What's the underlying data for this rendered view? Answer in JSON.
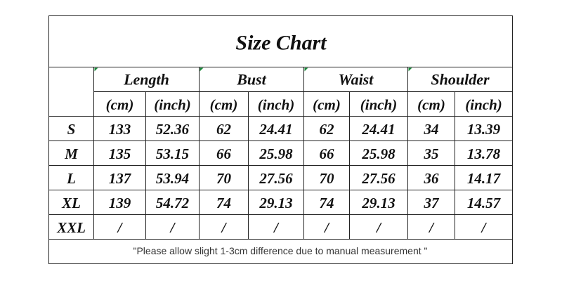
{
  "title": "Size Chart",
  "columns": [
    {
      "name": "Length"
    },
    {
      "name": "Bust"
    },
    {
      "name": "Waist"
    },
    {
      "name": "Shoulder"
    }
  ],
  "units": [
    "(cm)",
    "(inch)",
    "(cm)",
    "(inch)",
    "(cm)",
    "(inch)",
    "(cm)",
    "(inch)"
  ],
  "rows": [
    {
      "label": "S",
      "values": [
        "133",
        "52.36",
        "62",
        "24.41",
        "62",
        "24.41",
        "34",
        "13.39"
      ]
    },
    {
      "label": "M",
      "values": [
        "135",
        "53.15",
        "66",
        "25.98",
        "66",
        "25.98",
        "35",
        "13.78"
      ]
    },
    {
      "label": "L",
      "values": [
        "137",
        "53.94",
        "70",
        "27.56",
        "70",
        "27.56",
        "36",
        "14.17"
      ]
    },
    {
      "label": "XL",
      "values": [
        "139",
        "54.72",
        "74",
        "29.13",
        "74",
        "29.13",
        "37",
        "14.57"
      ]
    },
    {
      "label": "XXL",
      "values": [
        "/",
        "/",
        "/",
        "/",
        "/",
        "/",
        "/",
        "/"
      ]
    }
  ],
  "note": "\"Please allow slight 1-3cm difference due to manual measurement \""
}
